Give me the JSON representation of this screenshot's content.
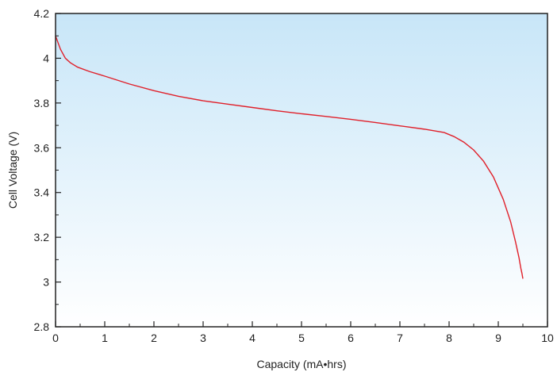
{
  "chart_data": {
    "type": "line",
    "title": "",
    "xlabel": "Capacity (mA•hrs)",
    "ylabel": "Cell Voltage (V)",
    "xlim": [
      0,
      10
    ],
    "ylim": [
      2.8,
      4.2
    ],
    "x_ticks": [
      0,
      1,
      2,
      3,
      4,
      5,
      6,
      7,
      8,
      9,
      10
    ],
    "y_ticks": [
      2.8,
      3,
      3.2,
      3.4,
      3.6,
      3.8,
      4,
      4.2
    ],
    "x_tick_labels": [
      "0",
      "1",
      "2",
      "3",
      "4",
      "5",
      "6",
      "7",
      "8",
      "9",
      "10"
    ],
    "y_tick_labels": [
      "2.8",
      "3",
      "3.2",
      "3.4",
      "3.6",
      "3.8",
      "4",
      "4.2"
    ],
    "grid": false,
    "legend": "none",
    "background_gradient": [
      "#c8e6f8",
      "#ffffff"
    ],
    "series": [
      {
        "color": "#e0202a",
        "x": [
          0,
          0.05,
          0.1,
          0.2,
          0.3,
          0.45,
          0.7,
          1,
          1.5,
          2,
          2.5,
          3,
          3.5,
          4,
          4.5,
          5,
          5.5,
          6,
          6.5,
          7,
          7.5,
          7.9,
          8.1,
          8.3,
          8.5,
          8.7,
          8.9,
          9.1,
          9.25,
          9.35,
          9.42,
          9.46,
          9.48,
          9.5
        ],
        "y": [
          4.1,
          4.07,
          4.04,
          4.0,
          3.98,
          3.96,
          3.94,
          3.92,
          3.885,
          3.855,
          3.83,
          3.81,
          3.795,
          3.78,
          3.765,
          3.752,
          3.74,
          3.727,
          3.713,
          3.698,
          3.683,
          3.668,
          3.65,
          3.625,
          3.59,
          3.54,
          3.47,
          3.37,
          3.27,
          3.18,
          3.11,
          3.06,
          3.04,
          3.015
        ]
      }
    ]
  }
}
